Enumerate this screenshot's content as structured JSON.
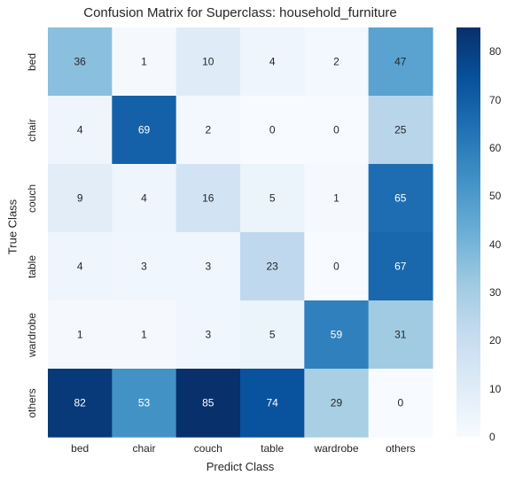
{
  "chart_data": {
    "type": "heatmap",
    "title": "Confusion Matrix for Superclass: household_furniture",
    "xlabel": "Predict Class",
    "ylabel": "True Class",
    "x_categories": [
      "bed",
      "chair",
      "couch",
      "table",
      "wardrobe",
      "others"
    ],
    "y_categories": [
      "bed",
      "chair",
      "couch",
      "table",
      "wardrobe",
      "others"
    ],
    "values": [
      [
        36,
        1,
        10,
        4,
        2,
        47
      ],
      [
        4,
        69,
        2,
        0,
        0,
        25
      ],
      [
        9,
        4,
        16,
        5,
        1,
        65
      ],
      [
        4,
        3,
        3,
        23,
        0,
        67
      ],
      [
        1,
        1,
        3,
        5,
        59,
        31
      ],
      [
        82,
        53,
        85,
        74,
        29,
        0
      ]
    ],
    "colormap": "Blues",
    "value_range": [
      0,
      85
    ],
    "colorbar_ticks": [
      0,
      10,
      20,
      30,
      40,
      50,
      60,
      70,
      80
    ],
    "annotate": true,
    "grid": false
  }
}
